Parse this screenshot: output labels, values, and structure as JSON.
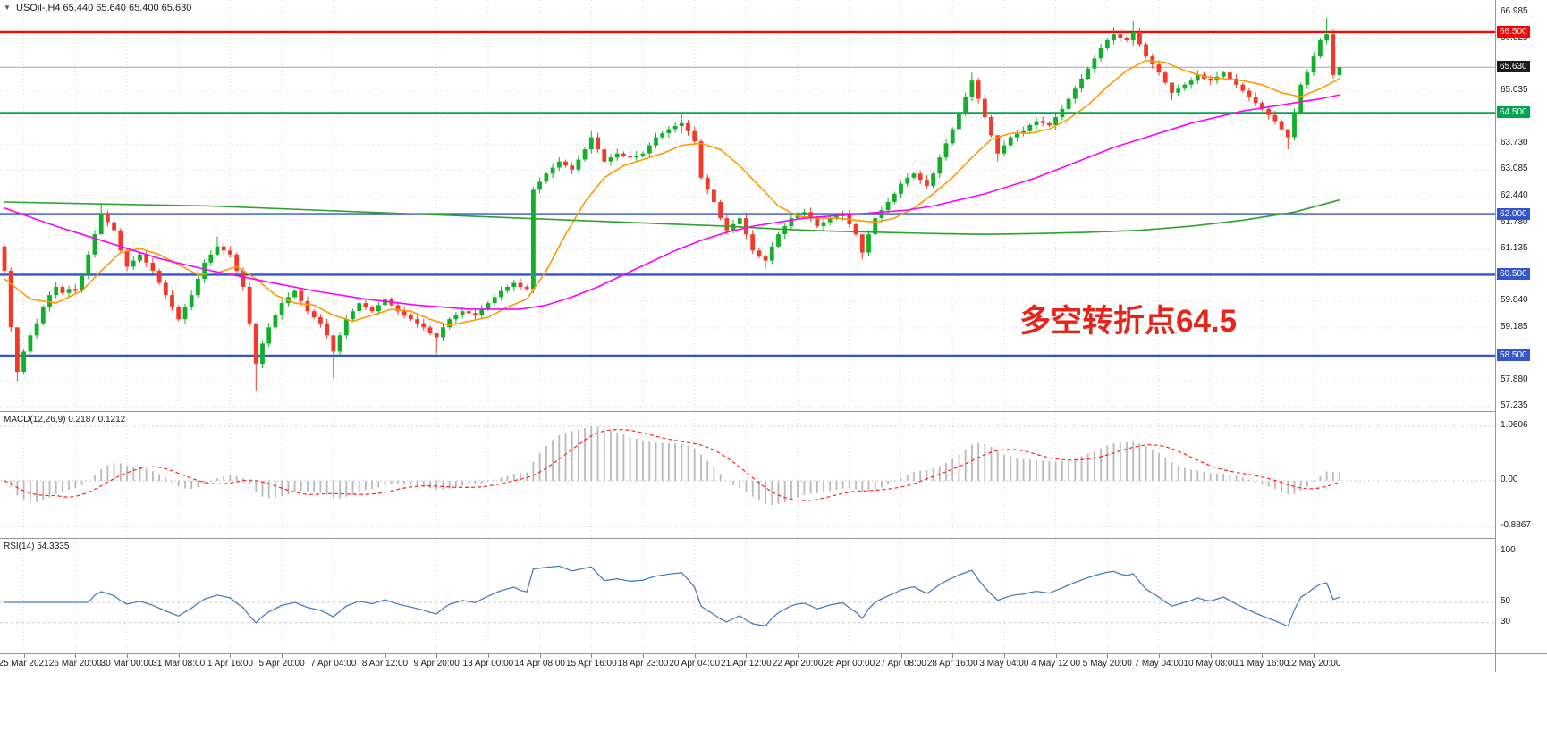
{
  "title": {
    "icon": "▼",
    "text": "USOil-.H4 65.440 65.640 65.400 65.630",
    "ohlc": {
      "open": "65.440",
      "high": "65.640",
      "low": "65.400",
      "close": "65.630"
    }
  },
  "annotation": {
    "text": "多空转折点64.5",
    "color": "#E8231A"
  },
  "colors": {
    "bull": "#12B02A",
    "bear": "#F2392B",
    "grid": "#DBDBDB",
    "price_line": "#A8A8A8",
    "current_badge_bg": "#1C1C1C",
    "macd_hist": "#B9B9B9",
    "macd_signal": "#FF2020",
    "rsi_line": "#4A7EBB"
  },
  "chart_data": [
    {
      "type": "candlestick",
      "title": "USOil- H4",
      "open_first": 61.2,
      "closes": [
        60.6,
        59.2,
        58.1,
        58.6,
        59.0,
        59.3,
        59.7,
        60.0,
        60.2,
        60.05,
        60.15,
        60.1,
        60.5,
        61.0,
        61.5,
        62.0,
        61.8,
        61.6,
        61.1,
        60.7,
        60.85,
        61.0,
        60.8,
        60.6,
        60.3,
        60.0,
        59.7,
        59.4,
        59.7,
        60.0,
        60.4,
        60.8,
        61.0,
        61.2,
        61.1,
        61.0,
        60.6,
        60.2,
        59.3,
        58.3,
        58.8,
        59.2,
        59.5,
        59.8,
        59.95,
        60.1,
        59.85,
        59.6,
        59.45,
        59.3,
        59.0,
        58.6,
        59.0,
        59.4,
        59.6,
        59.8,
        59.7,
        59.6,
        59.75,
        59.9,
        59.75,
        59.6,
        59.5,
        59.4,
        59.3,
        59.2,
        59.05,
        58.95,
        59.2,
        59.4,
        59.5,
        59.6,
        59.55,
        59.5,
        59.65,
        59.8,
        59.95,
        60.1,
        60.2,
        60.3,
        60.2,
        60.15,
        62.6,
        62.8,
        63.0,
        63.15,
        63.3,
        63.2,
        63.1,
        63.35,
        63.6,
        63.9,
        63.6,
        63.3,
        63.4,
        63.5,
        63.45,
        63.4,
        63.45,
        63.5,
        63.7,
        63.9,
        64.0,
        64.1,
        64.18,
        64.25,
        64.05,
        63.8,
        62.9,
        62.6,
        62.3,
        61.9,
        61.6,
        61.75,
        61.9,
        61.5,
        61.1,
        60.95,
        60.85,
        61.2,
        61.5,
        61.7,
        61.9,
        62.0,
        62.05,
        61.9,
        61.7,
        61.8,
        61.9,
        61.95,
        62.0,
        61.75,
        61.5,
        61.05,
        61.5,
        61.9,
        62.1,
        62.3,
        62.5,
        62.75,
        62.9,
        63.0,
        62.85,
        62.7,
        63.0,
        63.4,
        63.75,
        64.1,
        64.5,
        64.9,
        65.3,
        64.85,
        64.4,
        63.95,
        63.5,
        63.7,
        63.9,
        64.0,
        64.05,
        64.2,
        64.3,
        64.25,
        64.2,
        64.4,
        64.6,
        64.85,
        65.1,
        65.35,
        65.6,
        65.85,
        66.1,
        66.3,
        66.45,
        66.35,
        66.3,
        66.5,
        66.2,
        65.9,
        65.7,
        65.5,
        65.25,
        65.0,
        65.1,
        65.2,
        65.3,
        65.45,
        65.35,
        65.3,
        65.4,
        65.5,
        65.35,
        65.2,
        65.05,
        64.9,
        64.75,
        64.6,
        64.45,
        64.3,
        64.1,
        63.9,
        64.5,
        65.2,
        65.5,
        65.9,
        66.3,
        66.45,
        65.44,
        65.63
      ],
      "wick_overrides": {
        "2": [
          58.6,
          57.88
        ],
        "15": [
          62.27,
          61.75
        ],
        "33": [
          61.45,
          60.95
        ],
        "39": [
          59.3,
          57.62
        ],
        "51": [
          59.0,
          57.95
        ],
        "67": [
          59.05,
          58.55
        ],
        "91": [
          64.05,
          63.5
        ],
        "105": [
          64.47,
          64.0
        ],
        "118": [
          61.0,
          60.65
        ],
        "133": [
          61.5,
          60.88
        ],
        "150": [
          65.5,
          64.8
        ],
        "154": [
          63.95,
          63.3
        ],
        "172": [
          66.62,
          66.2
        ],
        "175": [
          66.78,
          66.15
        ],
        "181": [
          65.25,
          64.82
        ],
        "199": [
          64.1,
          63.6
        ],
        "205": [
          66.85,
          66.2
        ],
        "207": [
          65.64,
          65.4
        ]
      },
      "y_axis": {
        "min": 57.235,
        "max": 66.985,
        "labels": [
          66.985,
          66.325,
          65.035,
          64.39,
          63.73,
          63.085,
          62.44,
          61.78,
          61.135,
          59.84,
          59.185,
          57.88,
          57.235
        ]
      },
      "hlines": [
        {
          "price": 66.5,
          "label": "66.500",
          "color": "#FE0000"
        },
        {
          "price": 64.5,
          "label": "64.500",
          "color": "#00A551"
        },
        {
          "price": 62.0,
          "label": "62.000",
          "color": "#3254CE"
        },
        {
          "price": 60.5,
          "label": "60.500",
          "color": "#3254CE"
        },
        {
          "price": 58.5,
          "label": "58.500",
          "color": "#3254CE"
        }
      ],
      "current_price": {
        "value": 65.63,
        "label": "65.630"
      },
      "ma_lines": [
        {
          "name": "fast-orange",
          "color": "#FF9900",
          "points": [
            [
              0,
              60.4
            ],
            [
              4,
              59.9
            ],
            [
              8,
              59.8
            ],
            [
              12,
              60.1
            ],
            [
              15,
              60.6
            ],
            [
              18,
              61.05
            ],
            [
              21,
              61.15
            ],
            [
              24,
              61.0
            ],
            [
              27,
              60.75
            ],
            [
              30,
              60.5
            ],
            [
              33,
              60.55
            ],
            [
              36,
              60.7
            ],
            [
              39,
              60.4
            ],
            [
              42,
              60.0
            ],
            [
              45,
              59.8
            ],
            [
              48,
              59.75
            ],
            [
              51,
              59.5
            ],
            [
              54,
              59.35
            ],
            [
              57,
              59.5
            ],
            [
              60,
              59.65
            ],
            [
              63,
              59.6
            ],
            [
              66,
              59.4
            ],
            [
              69,
              59.25
            ],
            [
              72,
              59.35
            ],
            [
              75,
              59.45
            ],
            [
              78,
              59.7
            ],
            [
              81,
              59.9
            ],
            [
              84,
              60.6
            ],
            [
              87,
              61.5
            ],
            [
              90,
              62.3
            ],
            [
              93,
              62.9
            ],
            [
              96,
              63.2
            ],
            [
              99,
              63.35
            ],
            [
              102,
              63.5
            ],
            [
              105,
              63.7
            ],
            [
              108,
              63.75
            ],
            [
              111,
              63.6
            ],
            [
              114,
              63.2
            ],
            [
              117,
              62.7
            ],
            [
              120,
              62.2
            ],
            [
              123,
              61.95
            ],
            [
              126,
              61.9
            ],
            [
              129,
              61.9
            ],
            [
              132,
              61.85
            ],
            [
              135,
              61.8
            ],
            [
              138,
              61.9
            ],
            [
              141,
              62.15
            ],
            [
              144,
              62.5
            ],
            [
              147,
              62.9
            ],
            [
              150,
              63.4
            ],
            [
              153,
              63.85
            ],
            [
              156,
              64.0
            ],
            [
              159,
              64.0
            ],
            [
              162,
              64.1
            ],
            [
              165,
              64.35
            ],
            [
              168,
              64.7
            ],
            [
              171,
              65.15
            ],
            [
              174,
              65.55
            ],
            [
              177,
              65.8
            ],
            [
              180,
              65.75
            ],
            [
              183,
              65.55
            ],
            [
              186,
              65.4
            ],
            [
              189,
              65.35
            ],
            [
              192,
              65.3
            ],
            [
              195,
              65.2
            ],
            [
              198,
              65.0
            ],
            [
              201,
              64.9
            ],
            [
              204,
              65.1
            ],
            [
              207,
              65.35
            ]
          ]
        },
        {
          "name": "mid-magenta",
          "color": "#FF00FF",
          "points": [
            [
              0,
              62.15
            ],
            [
              8,
              61.7
            ],
            [
              16,
              61.3
            ],
            [
              24,
              60.9
            ],
            [
              32,
              60.6
            ],
            [
              40,
              60.35
            ],
            [
              48,
              60.1
            ],
            [
              56,
              59.9
            ],
            [
              64,
              59.75
            ],
            [
              72,
              59.65
            ],
            [
              80,
              59.65
            ],
            [
              84,
              59.75
            ],
            [
              88,
              59.95
            ],
            [
              92,
              60.2
            ],
            [
              96,
              60.5
            ],
            [
              100,
              60.8
            ],
            [
              104,
              61.1
            ],
            [
              108,
              61.35
            ],
            [
              112,
              61.55
            ],
            [
              116,
              61.7
            ],
            [
              120,
              61.8
            ],
            [
              124,
              61.9
            ],
            [
              128,
              61.95
            ],
            [
              132,
              62.0
            ],
            [
              136,
              62.05
            ],
            [
              140,
              62.1
            ],
            [
              144,
              62.2
            ],
            [
              148,
              62.35
            ],
            [
              152,
              62.5
            ],
            [
              156,
              62.7
            ],
            [
              160,
              62.9
            ],
            [
              164,
              63.15
            ],
            [
              168,
              63.4
            ],
            [
              172,
              63.65
            ],
            [
              176,
              63.85
            ],
            [
              180,
              64.05
            ],
            [
              184,
              64.25
            ],
            [
              188,
              64.4
            ],
            [
              192,
              64.55
            ],
            [
              196,
              64.65
            ],
            [
              200,
              64.75
            ],
            [
              204,
              64.85
            ],
            [
              207,
              64.95
            ]
          ]
        },
        {
          "name": "slow-green",
          "color": "#2EA12E",
          "points": [
            [
              0,
              62.3
            ],
            [
              16,
              62.25
            ],
            [
              32,
              62.2
            ],
            [
              48,
              62.1
            ],
            [
              64,
              62.0
            ],
            [
              80,
              61.9
            ],
            [
              96,
              61.8
            ],
            [
              104,
              61.75
            ],
            [
              112,
              61.7
            ],
            [
              120,
              61.63
            ],
            [
              128,
              61.58
            ],
            [
              136,
              61.55
            ],
            [
              144,
              61.52
            ],
            [
              152,
              61.5
            ],
            [
              160,
              61.52
            ],
            [
              168,
              61.55
            ],
            [
              176,
              61.6
            ],
            [
              184,
              61.7
            ],
            [
              192,
              61.85
            ],
            [
              200,
              62.05
            ],
            [
              207,
              62.35
            ]
          ]
        }
      ],
      "x_labels": [
        "25 Mar 2021",
        "26 Mar 20:00",
        "30 Mar 00:00",
        "31 Mar 08:00",
        "1 Apr 16:00",
        "5 Apr 20:00",
        "7 Apr 04:00",
        "8 Apr 12:00",
        "9 Apr 20:00",
        "13 Apr 00:00",
        "14 Apr 08:00",
        "15 Apr 16:00",
        "18 Apr 23:00",
        "20 Apr 04:00",
        "21 Apr 12:00",
        "22 Apr 20:00",
        "26 Apr 00:00",
        "27 Apr 08:00",
        "28 Apr 16:00",
        "3 May 04:00",
        "4 May 12:00",
        "5 May 20:00",
        "7 May 04:00",
        "10 May 08:00",
        "11 May 16:00",
        "12 May 20:00"
      ]
    },
    {
      "type": "macd_histogram",
      "label": "MACD(12,26,9) 0.2187 0.1212",
      "params": [
        12,
        26,
        9
      ],
      "values": {
        "macd": "0.2187",
        "signal": "0.1212"
      },
      "axis": [
        {
          "v": 1.0606,
          "t": "1.0606"
        },
        {
          "v": 0,
          "t": "0.00"
        },
        {
          "v": -0.8867,
          "t": "-0.8867"
        }
      ]
    },
    {
      "type": "line",
      "label": "RSI(14) 54.3335",
      "period": 14,
      "value": "54.3335",
      "levels": [
        50,
        30
      ],
      "axis": [
        {
          "v": 100,
          "t": "100"
        },
        {
          "v": 50,
          "t": "50"
        },
        {
          "v": 30,
          "t": "30"
        }
      ]
    }
  ]
}
